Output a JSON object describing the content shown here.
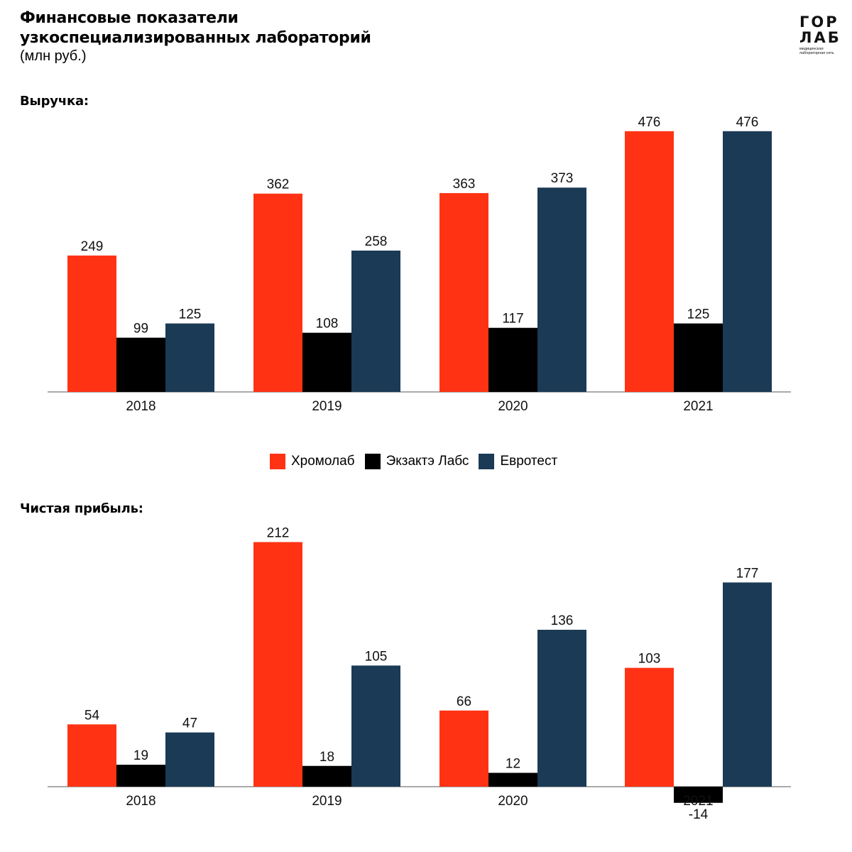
{
  "header": {
    "title_line1": "Финансовые показатели",
    "title_line2": "узкоспециализированных лабораторий",
    "subtitle": "(млн руб.)"
  },
  "logo": {
    "line1": "ГОР",
    "line2": "ЛАБ",
    "small_text": "медицинская лабораторная сеть"
  },
  "colors": {
    "Хромолаб": "#ff3314",
    "Экзактэ Лабс": "#000000",
    "Евротест": "#1b3a55"
  },
  "legend": [
    "Хромолаб",
    "Экзактэ Лабс",
    "Евротест"
  ],
  "chart_data": [
    {
      "type": "bar",
      "title": "Выручка:",
      "categories": [
        "2018",
        "2019",
        "2020",
        "2021"
      ],
      "series": [
        {
          "name": "Хромолаб",
          "values": [
            249,
            362,
            363,
            476
          ]
        },
        {
          "name": "Экзактэ Лабс",
          "values": [
            99,
            108,
            117,
            125
          ]
        },
        {
          "name": "Евротест",
          "values": [
            125,
            258,
            373,
            476
          ]
        }
      ],
      "ylim": [
        0,
        500
      ],
      "grid": false,
      "legend": "bottom-center"
    },
    {
      "type": "bar",
      "title": "Чистая прибыль:",
      "categories": [
        "2018",
        "2019",
        "2020",
        "2021"
      ],
      "series": [
        {
          "name": "Хромолаб",
          "values": [
            54,
            212,
            66,
            103
          ]
        },
        {
          "name": "Экзактэ Лабс",
          "values": [
            19,
            18,
            12,
            -14
          ]
        },
        {
          "name": "Евротест",
          "values": [
            47,
            105,
            136,
            177
          ]
        }
      ],
      "ylim": [
        -20,
        220
      ],
      "grid": false
    }
  ]
}
